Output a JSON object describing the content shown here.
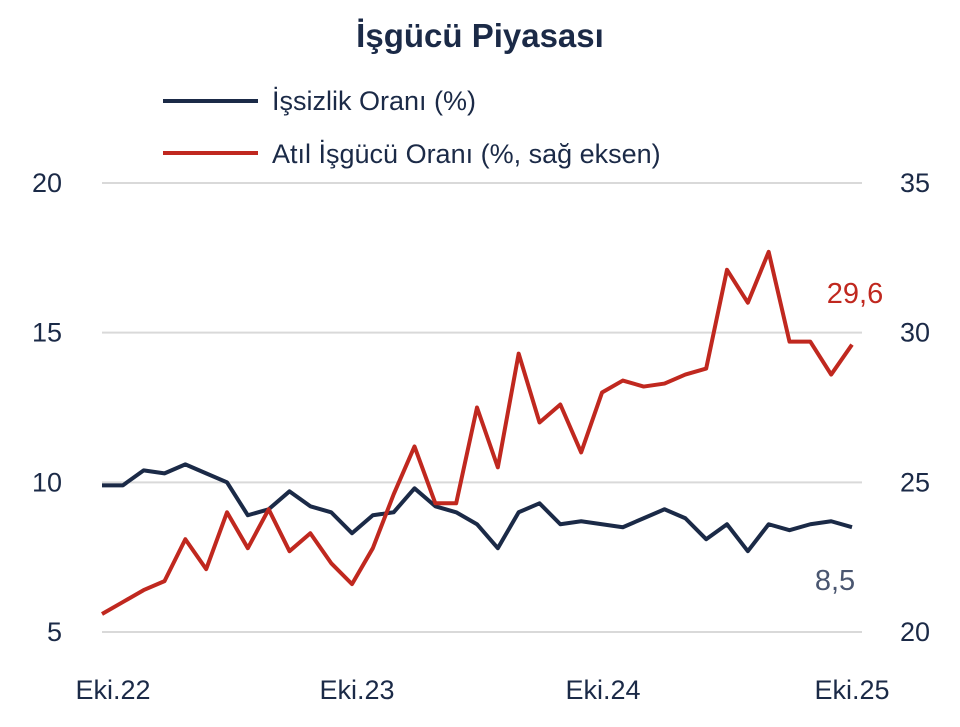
{
  "chart_data": {
    "type": "line",
    "title": "İşgücü Piyasası",
    "x_tick_labels": [
      "Eki.22",
      "Eki.23",
      "Eki.24",
      "Eki.25"
    ],
    "x_range": [
      "Eki.22",
      "Eki.25"
    ],
    "frequency": "monthly",
    "y_left": {
      "ylim": [
        5,
        20
      ],
      "ticks": [
        "5",
        "10",
        "15",
        "20"
      ]
    },
    "y_right": {
      "ylim": [
        20,
        35
      ],
      "ticks": [
        "20",
        "25",
        "30",
        "35"
      ]
    },
    "grid": true,
    "legend_position": "top",
    "series": [
      {
        "name": "İşsizlik Oranı (%)",
        "axis": "left",
        "color": "#1b2a47",
        "end_label": "8,5",
        "values": [
          9.9,
          9.9,
          10.4,
          10.3,
          10.6,
          10.3,
          10.0,
          8.9,
          9.1,
          9.7,
          9.2,
          9.0,
          8.3,
          8.9,
          9.0,
          9.8,
          9.2,
          9.0,
          8.6,
          7.8,
          9.0,
          9.3,
          8.6,
          8.7,
          8.6,
          8.5,
          8.8,
          9.1,
          8.8,
          8.1,
          8.6,
          7.7,
          8.6,
          8.4,
          8.6,
          8.7,
          8.5
        ]
      },
      {
        "name": "Atıl İşgücü Oranı (%, sağ eksen)",
        "axis": "right",
        "color": "#c0281f",
        "end_label": "29,6",
        "values": [
          20.6,
          21.0,
          21.4,
          21.7,
          23.1,
          22.1,
          24.0,
          22.8,
          24.1,
          22.7,
          23.3,
          22.3,
          21.6,
          22.8,
          24.6,
          26.2,
          24.3,
          24.3,
          27.5,
          25.5,
          29.3,
          27.0,
          27.6,
          26.0,
          28.0,
          28.4,
          28.2,
          28.3,
          28.6,
          28.8,
          32.1,
          31.0,
          32.7,
          29.7,
          29.7,
          28.6,
          29.6
        ]
      }
    ]
  }
}
